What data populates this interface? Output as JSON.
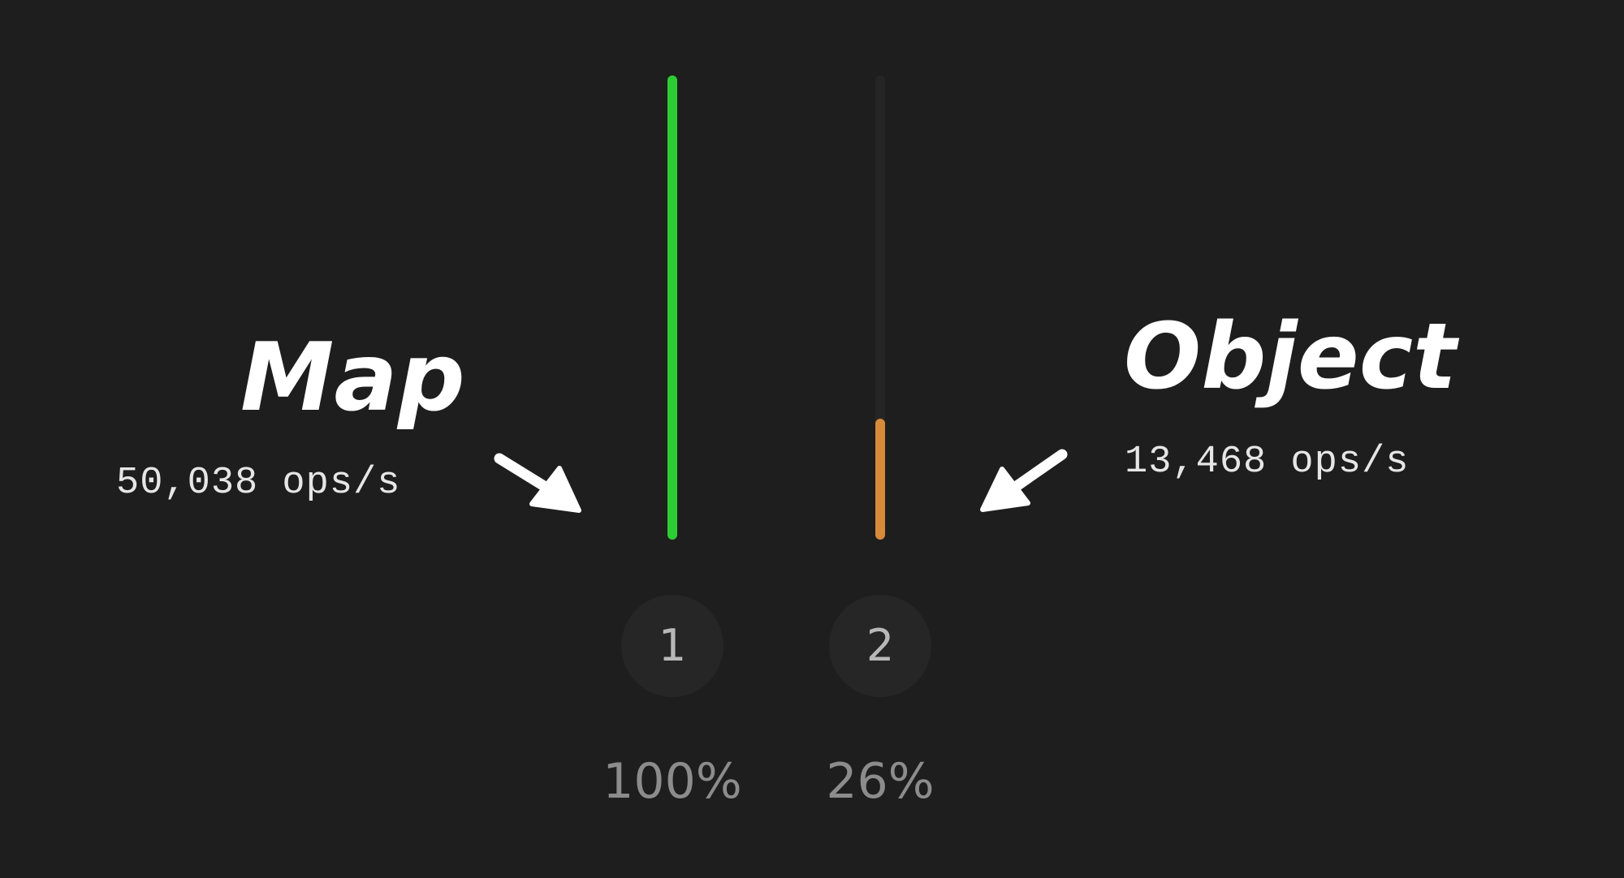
{
  "chart_data": {
    "type": "bar",
    "orientation": "vertical",
    "categories": [
      "1",
      "2"
    ],
    "series": [
      {
        "values": [
          100,
          26
        ],
        "colors": [
          "#2ecc34",
          "#d68a3a"
        ]
      }
    ],
    "value_labels": [
      "100%",
      "26%"
    ],
    "ylim": [
      0,
      100
    ],
    "grid": false,
    "annotations": [
      {
        "label": "Map",
        "ops": "50,038 ops/s",
        "points_to": "1"
      },
      {
        "label": "Object",
        "ops": "13,468 ops/s",
        "points_to": "2"
      }
    ]
  },
  "colors": {
    "background": "#1e1e1e",
    "track": "#252525",
    "badge": "#262626",
    "badge_text": "#b8b8b8",
    "pct_text": "#8c8c8c",
    "annotation": "#ffffff"
  }
}
